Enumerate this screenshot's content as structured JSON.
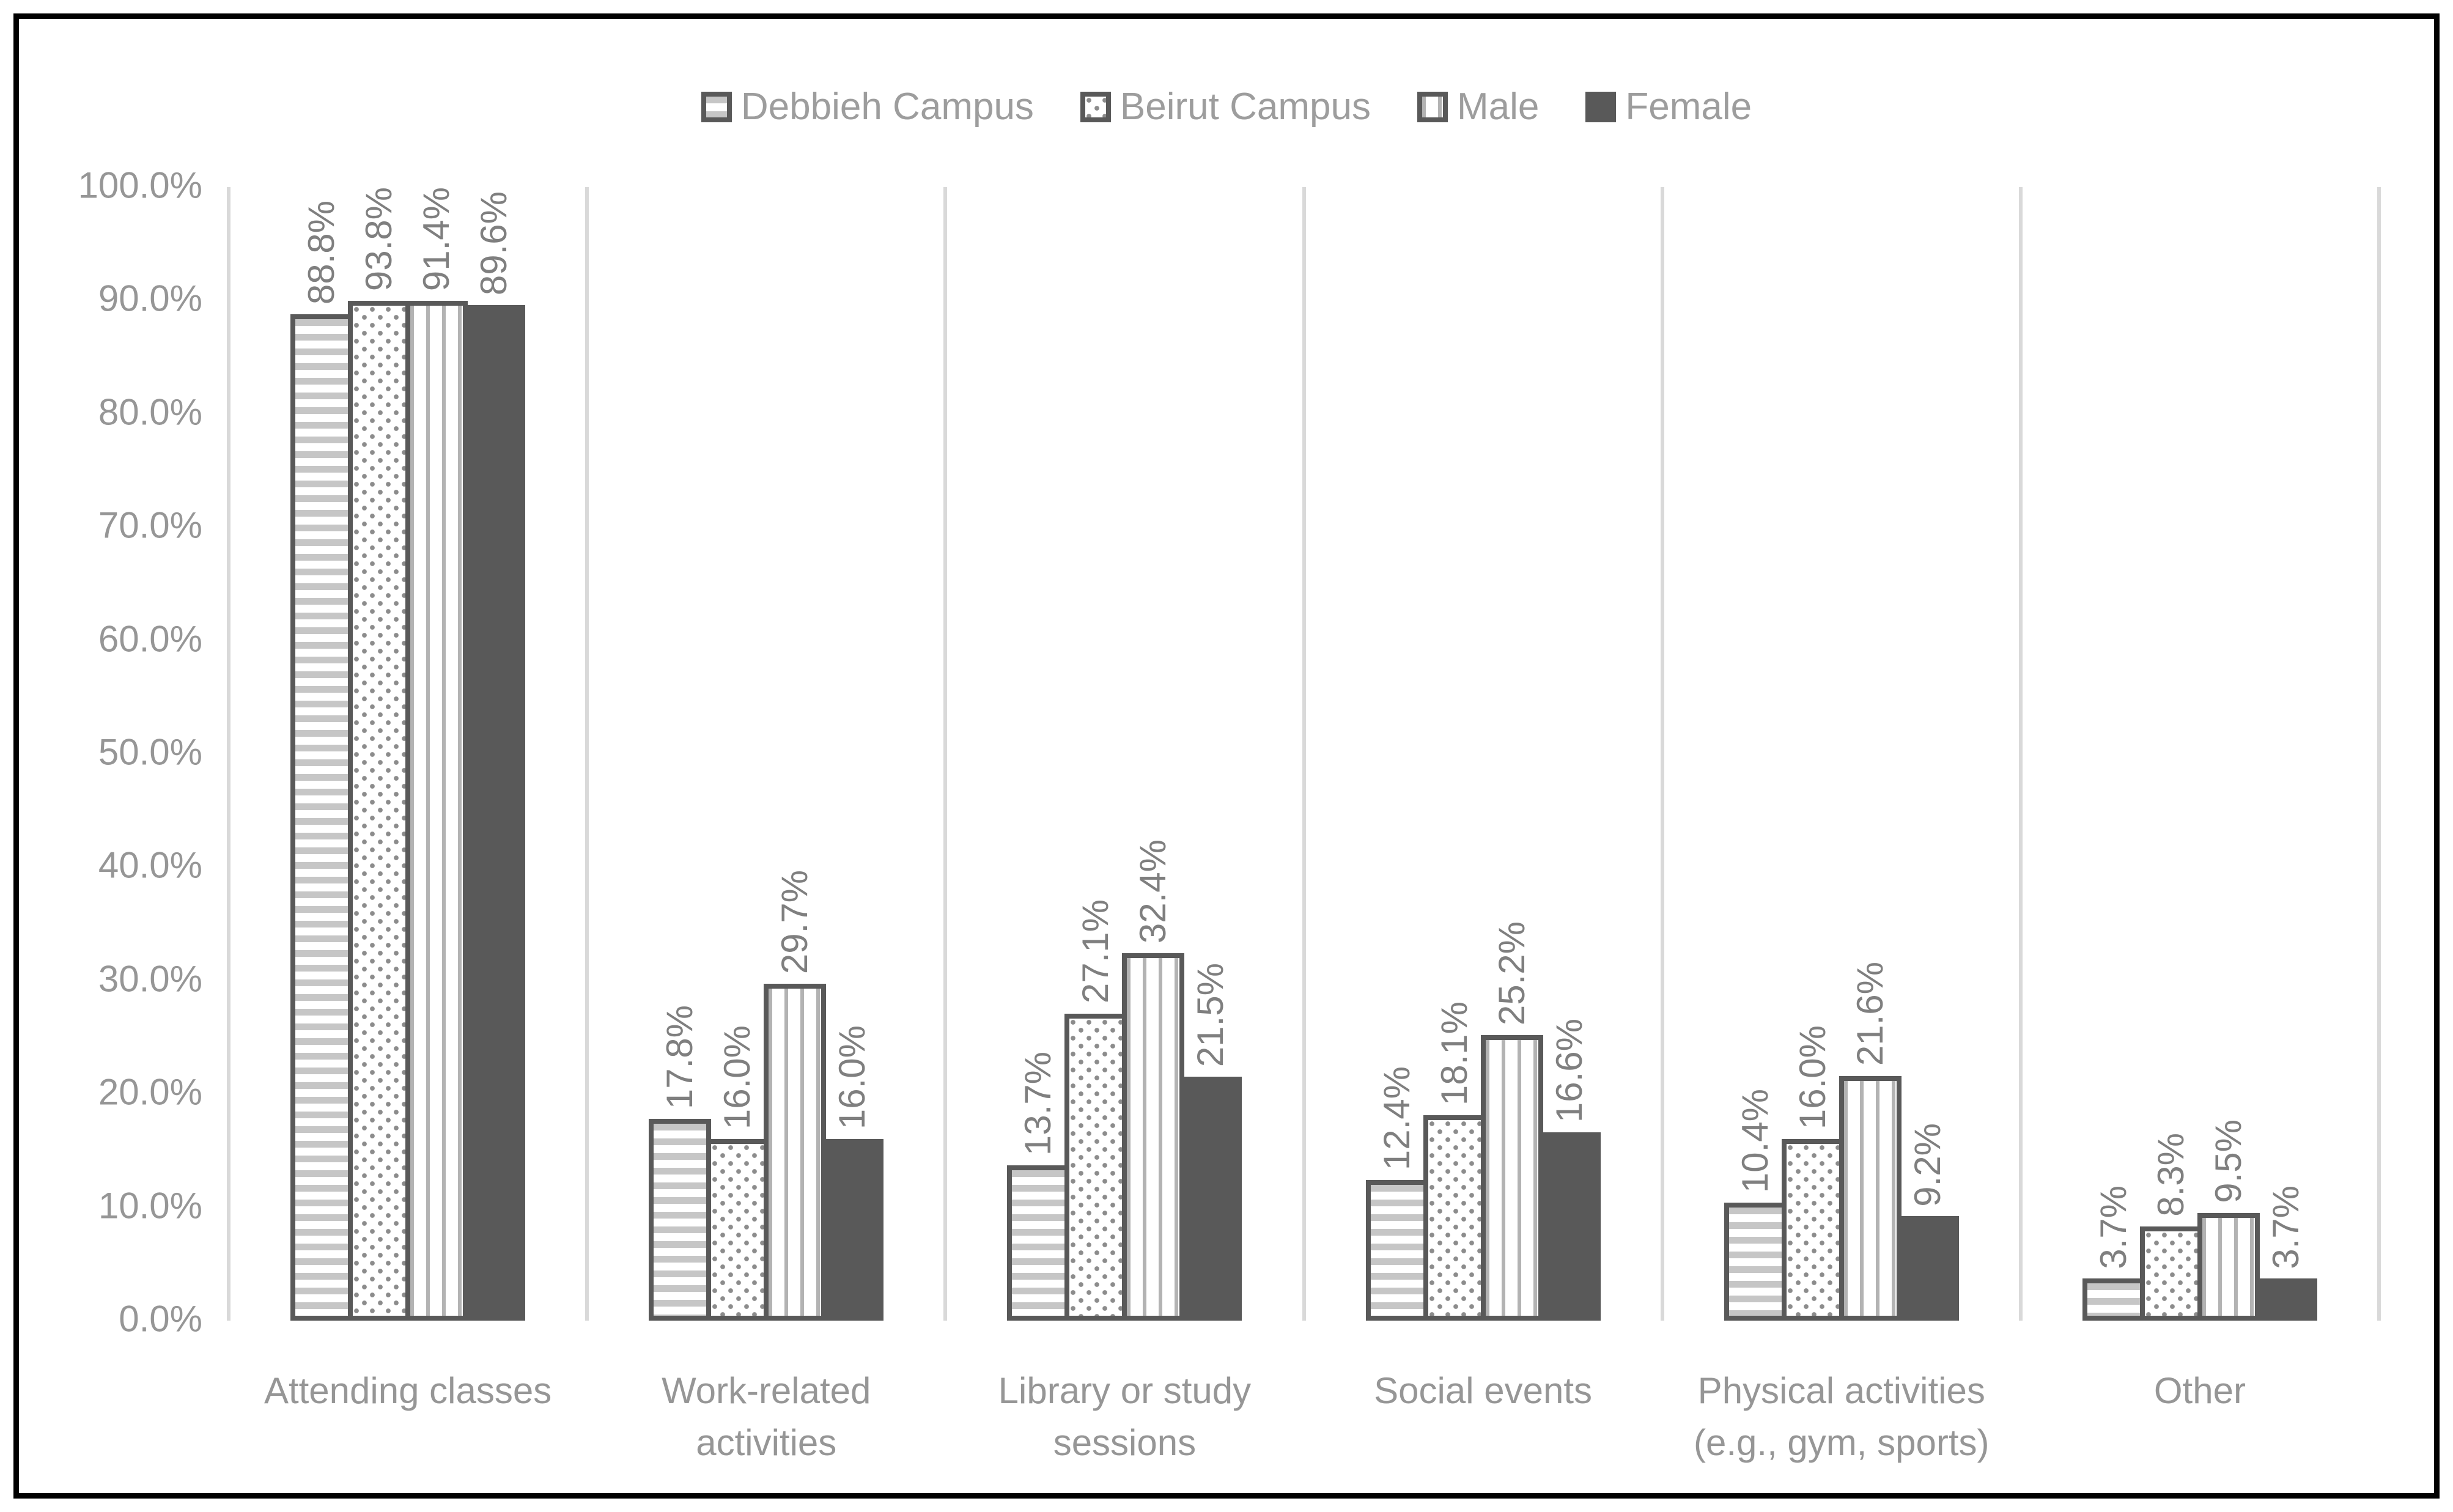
{
  "legend": {
    "items": [
      {
        "label": "Debbieh Campus",
        "pattern": "horizontal-stripes"
      },
      {
        "label": "Beirut Campus",
        "pattern": "dots"
      },
      {
        "label": "Male",
        "pattern": "vertical-stripes"
      },
      {
        "label": "Female",
        "pattern": "solid"
      }
    ]
  },
  "y_axis": {
    "tick_labels": [
      "100.0%",
      "90.0%",
      "80.0%",
      "70.0%",
      "60.0%",
      "50.0%",
      "40.0%",
      "30.0%",
      "20.0%",
      "10.0%",
      "0.0%"
    ]
  },
  "chart_data": {
    "type": "bar",
    "title": "",
    "categories": [
      "Attending classes",
      "Work-related activities",
      "Library or study sessions",
      "Social events",
      "Physical activities (e.g., gym, sports)",
      "Other"
    ],
    "series": [
      {
        "name": "Debbieh Campus",
        "pattern": "horizontal-stripes",
        "values": [
          88.8,
          17.8,
          13.7,
          12.4,
          10.4,
          3.7
        ]
      },
      {
        "name": "Beirut Campus",
        "pattern": "dots",
        "values": [
          93.8,
          16.0,
          27.1,
          18.1,
          16.0,
          8.3
        ]
      },
      {
        "name": "Male",
        "pattern": "vertical-stripes",
        "values": [
          91.4,
          29.7,
          32.4,
          25.2,
          21.6,
          9.5
        ]
      },
      {
        "name": "Female",
        "pattern": "solid",
        "values": [
          89.6,
          16.0,
          21.5,
          16.6,
          9.2,
          3.7
        ]
      }
    ],
    "data_label_format": "0.0%",
    "ylim": [
      0,
      100
    ],
    "y_tick_step": 10,
    "legend_position": "top",
    "gridlines": "vertical-category-separators"
  },
  "colors": {
    "frame_border": "#000000",
    "bar_border": "#595959",
    "solid_fill": "#595959",
    "horizontal_stripe": "#c6c6c6",
    "vertical_stripe": "#b3b3b3",
    "dot": "#8c8c8c",
    "separator": "#d9d9d9",
    "axis_text": "#969696",
    "data_label_text": "#7f7f7f",
    "legend_text": "#9d9d9d"
  }
}
